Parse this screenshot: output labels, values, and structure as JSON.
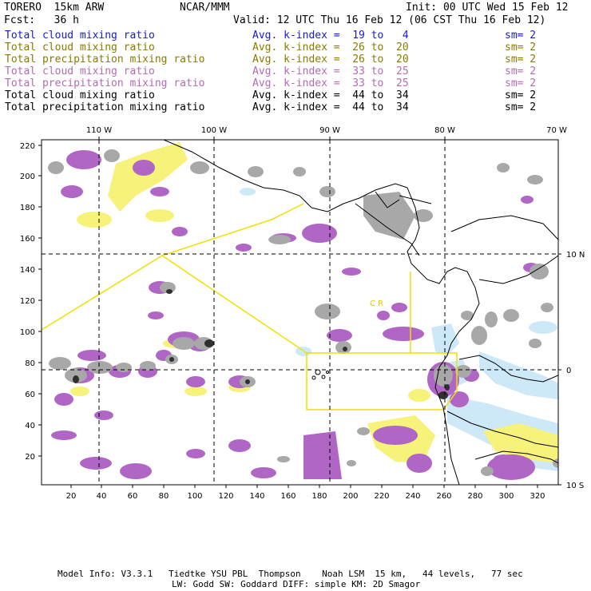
{
  "header": {
    "model": "TORERO  15km ARW",
    "org": "NCAR/MMM",
    "init": "Init: 00 UTC Wed 15 Feb 12",
    "fcst": "Fcst:   36 h",
    "valid": "Valid: 12 UTC Thu 16 Feb 12 (06 CST Thu 16 Feb 12)"
  },
  "legend": [
    {
      "field": "Total cloud mixing ratio",
      "kindex": "Avg. k-index =  19 to   4",
      "sm": "sm= 2",
      "color": "#1a1acc"
    },
    {
      "field": "Total cloud mixing ratio",
      "kindex": "Avg. k-index =  26 to  20",
      "sm": "sm= 2",
      "color": "#8a7a00"
    },
    {
      "field": "Total precipitation mixing ratio",
      "kindex": "Avg. k-index =  26 to  20",
      "sm": "sm= 2",
      "color": "#8a7a00"
    },
    {
      "field": "Total cloud mixing ratio",
      "kindex": "Avg. k-index =  33 to  25",
      "sm": "sm= 2",
      "color": "#b56ab5"
    },
    {
      "field": "Total precipitation mixing ratio",
      "kindex": "Avg. k-index =  33 to  25",
      "sm": "sm= 2",
      "color": "#b56ab5"
    },
    {
      "field": "Total cloud mixing ratio",
      "kindex": "Avg. k-index =  44 to  34",
      "sm": "sm= 2",
      "color": "#000000"
    },
    {
      "field": "Total precipitation mixing ratio",
      "kindex": "Avg. k-index =  44 to  34",
      "sm": "sm= 2",
      "color": "#000000"
    }
  ],
  "axes": {
    "top_labels": [
      "110 W",
      "100 W",
      "90 W",
      "80 W",
      "70 W"
    ],
    "right_labels": [
      "10 N",
      "0",
      "10 S"
    ],
    "left_labels": [
      "220",
      "200",
      "180",
      "160",
      "140",
      "120",
      "100",
      "80",
      "60",
      "40",
      "20"
    ],
    "bottom_labels": [
      "20",
      "40",
      "60",
      "80",
      "100",
      "120",
      "140",
      "160",
      "180",
      "200",
      "220",
      "240",
      "260",
      "280",
      "300",
      "320"
    ]
  },
  "map_labels": {
    "costa_rica": "C R"
  },
  "footer": {
    "line1": "Model Info: V3.3.1   Tiedtke YSU PBL  Thompson    Noah LSM  15 km,   44 levels,   77 sec",
    "line2": "LW: Godd SW: Goddard DIFF: simple KM: 2D Smagor"
  },
  "colors": {
    "purple_shade": "#b066c4",
    "yellow_shade": "#f7f27a",
    "lightblue_shade": "#cde9f7",
    "gray_shade": "#9a9a9a",
    "domain_line": "#f0e000"
  }
}
